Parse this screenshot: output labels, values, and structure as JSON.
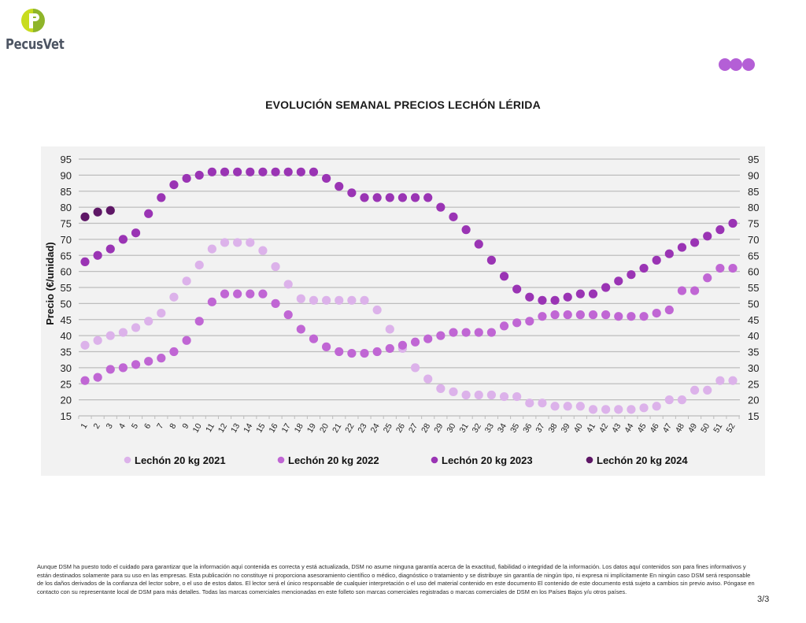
{
  "header": {
    "logo_text": "PecusVet",
    "logo_colors": {
      "light": "#c8dc1e",
      "dark": "#8fb52a"
    },
    "decor_color": "#b45fd6"
  },
  "chart_data": {
    "type": "scatter",
    "title": "EVOLUCIÓN SEMANAL PRECIOS LECHÓN LÉRIDA",
    "xlabel": "",
    "ylabel": "Precio (€/unidad)",
    "ylim": [
      15,
      95
    ],
    "yticks": [
      95,
      90,
      85,
      80,
      75,
      70,
      65,
      60,
      55,
      50,
      45,
      40,
      35,
      30,
      25,
      20,
      15
    ],
    "secondary_y_axis": true,
    "grid": true,
    "legend_position": "bottom",
    "x": [
      1,
      2,
      3,
      4,
      5,
      6,
      7,
      8,
      9,
      10,
      11,
      12,
      13,
      14,
      15,
      16,
      17,
      18,
      19,
      20,
      21,
      22,
      23,
      24,
      25,
      26,
      27,
      28,
      29,
      30,
      31,
      32,
      33,
      34,
      35,
      36,
      37,
      38,
      39,
      40,
      41,
      42,
      43,
      44,
      45,
      46,
      47,
      48,
      49,
      50,
      51,
      52
    ],
    "series": [
      {
        "name": "Lechón 20 kg 2021",
        "color": "#dcb2ea",
        "values": [
          37,
          38.5,
          40,
          41,
          42.5,
          44.5,
          47,
          52,
          57,
          62,
          67,
          69,
          69,
          69,
          66.5,
          61.5,
          56,
          51.5,
          51,
          51,
          51,
          51,
          51,
          48,
          42,
          36,
          30,
          26.5,
          23.5,
          22.5,
          21.5,
          21.5,
          21.5,
          21,
          21,
          19,
          19,
          18,
          18,
          18,
          17,
          17,
          17,
          17,
          17.5,
          18,
          20,
          20,
          23,
          23,
          26,
          26
        ]
      },
      {
        "name": "Lechón 20 kg 2022",
        "color": "#c066d4",
        "values": [
          26,
          27,
          29.5,
          30,
          31,
          32,
          33,
          35,
          38.5,
          44.5,
          50.5,
          53,
          53,
          53,
          53,
          50,
          46.5,
          42,
          39,
          36.5,
          35,
          34.5,
          34.5,
          35,
          36,
          37,
          38,
          39,
          40,
          41,
          41,
          41,
          41,
          43,
          44,
          44.5,
          46,
          46.5,
          46.5,
          46.5,
          46.5,
          46.5,
          46,
          46,
          46,
          47,
          48,
          54,
          54,
          58,
          61,
          61
        ]
      },
      {
        "name": "Lechón 20 kg 2023",
        "color": "#9a34b4",
        "values": [
          63,
          65,
          67,
          70,
          72,
          78,
          83,
          87,
          89,
          90,
          91,
          91,
          91,
          91,
          91,
          91,
          91,
          91,
          91,
          89,
          86.5,
          84.5,
          83,
          83,
          83,
          83,
          83,
          83,
          80,
          77,
          73,
          68.5,
          63.5,
          58.5,
          54.5,
          52,
          51,
          51,
          52,
          53,
          53,
          55,
          57,
          59,
          61,
          63.5,
          65.5,
          67.5,
          69,
          71,
          73,
          75
        ]
      },
      {
        "name": "Lechón 20 kg 2024",
        "color": "#5e1766",
        "values": [
          77,
          78.5,
          79
        ]
      }
    ]
  },
  "footer": {
    "disclaimer": "Aunque DSM ha puesto todo el cuidado para garantizar que la información aquí contenida es correcta y está actualizada, DSM no asume ninguna garantía acerca de la exactitud, fiabilidad o integridad de la información. Los datos aquí contenidos son para fines informativos y están destinados solamente para su uso en las empresas. Esta publicación no constituye ni proporciona asesoramiento científico o médico, diagnóstico o tratamiento y se distribuye sin garantía de ningún tipo, ni expresa ni implícitamente En ningún caso DSM será responsable de los daños derivados de la confianza del lector sobre, o el uso de estos datos. El lector será el único responsable de cualquier interpretación o el uso del material contenido en este documento El contenido de este documento está sujeto a cambios sin previo aviso. Póngase en contacto con su representante local de DSM para más detalles. Todas las marcas comerciales mencionadas en este folleto son marcas comerciales registradas o marcas comerciales de DSM en los Países Bajos y/u otros países.",
    "page_number": "3/3"
  }
}
